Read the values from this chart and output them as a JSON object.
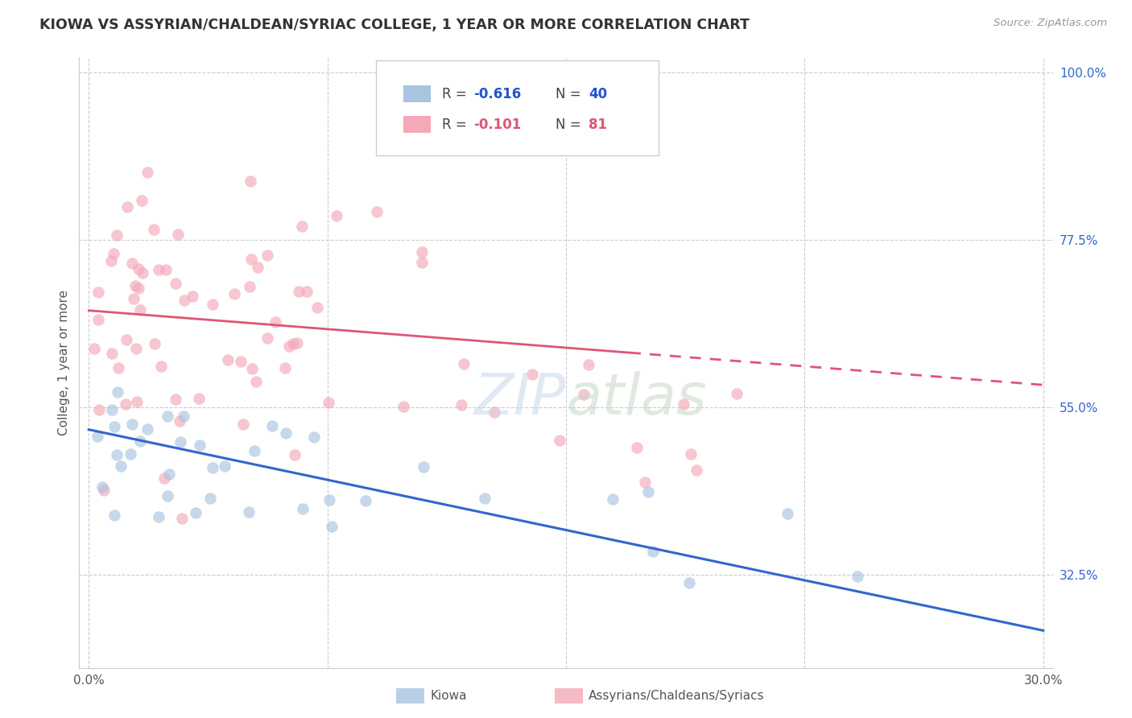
{
  "title": "KIOWA VS ASSYRIAN/CHALDEAN/SYRIAC COLLEGE, 1 YEAR OR MORE CORRELATION CHART",
  "source": "Source: ZipAtlas.com",
  "ylabel": "College, 1 year or more",
  "right_ytick_labels": [
    "32.5%",
    "55.0%",
    "77.5%",
    "100.0%"
  ],
  "right_ytick_vals": [
    32.5,
    55.0,
    77.5,
    100.0
  ],
  "legend_label1": "Kiowa",
  "legend_label2": "Assyrians/Chaldeans/Syriacs",
  "R1": "-0.616",
  "N1": "40",
  "R2": "-0.101",
  "N2": "81",
  "blue_color": "#a8c4e0",
  "pink_color": "#f4a8b8",
  "blue_line_color": "#3366cc",
  "pink_line_color": "#e05575",
  "background_color": "#ffffff",
  "grid_color": "#cccccc",
  "xmin": 0.0,
  "xmax": 30.0,
  "ymin": 20.0,
  "ymax": 102.0,
  "blue_line_x0": 0.0,
  "blue_line_y0": 52.0,
  "blue_line_x1": 30.0,
  "blue_line_y1": 25.0,
  "pink_line_x0": 0.0,
  "pink_line_y0": 68.0,
  "pink_line_x1": 30.0,
  "pink_line_y1": 58.0,
  "pink_solid_end": 17.0,
  "watermark": "ZIPatlas",
  "watermark_zip_color": "#c8d8e8",
  "watermark_atlas_color": "#c8d8c8"
}
